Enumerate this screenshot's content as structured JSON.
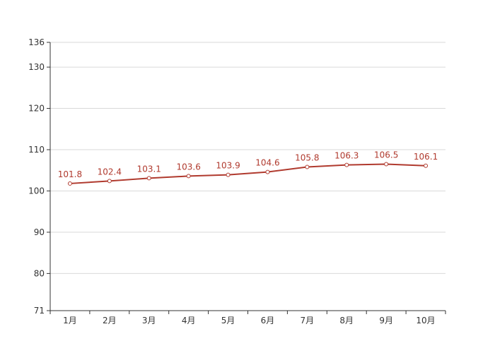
{
  "chart_data": {
    "type": "line",
    "title": "",
    "xlabel": "",
    "ylabel": "",
    "categories": [
      "1月",
      "2月",
      "3月",
      "4月",
      "5月",
      "6月",
      "7月",
      "8月",
      "9月",
      "10月"
    ],
    "series": [
      {
        "values": [
          101.8,
          102.4,
          103.1,
          103.6,
          103.9,
          104.6,
          105.8,
          106.3,
          106.5,
          106.1
        ]
      }
    ],
    "ylim": [
      71,
      136
    ],
    "y_ticks": [
      71,
      80,
      90,
      100,
      110,
      120,
      130,
      136
    ],
    "grid": true,
    "data_labels": true,
    "colors": {
      "line": "#b03a2e",
      "label": "#b03a2e",
      "marker_fill": "#ffffff"
    }
  }
}
